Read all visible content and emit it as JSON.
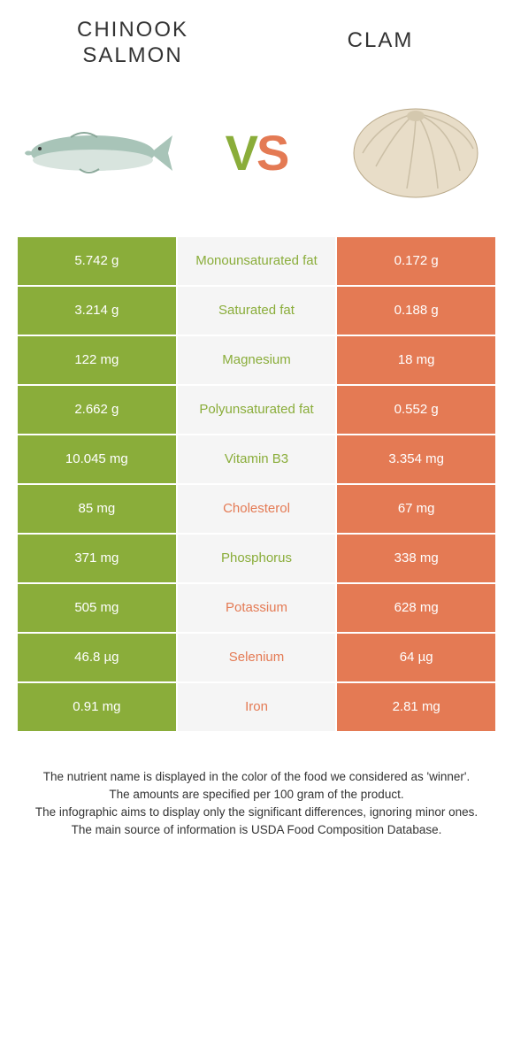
{
  "header": {
    "left_title": "Chinook salmon",
    "right_title": "Clam",
    "vs_v": "V",
    "vs_s": "S"
  },
  "colors": {
    "left_winner": "#8aad3a",
    "right_winner": "#e47a54",
    "mid_bg": "#f5f5f5",
    "salmon_body": "#a8c4b8",
    "salmon_belly": "#d8e4de",
    "clam_shell": "#e8ddc8",
    "clam_edge": "#b8a888"
  },
  "rows": [
    {
      "label": "Monounsaturated fat",
      "left": "5.742 g",
      "right": "0.172 g",
      "winner": "left"
    },
    {
      "label": "Saturated fat",
      "left": "3.214 g",
      "right": "0.188 g",
      "winner": "left"
    },
    {
      "label": "Magnesium",
      "left": "122 mg",
      "right": "18 mg",
      "winner": "left"
    },
    {
      "label": "Polyunsaturated fat",
      "left": "2.662 g",
      "right": "0.552 g",
      "winner": "left"
    },
    {
      "label": "Vitamin B3",
      "left": "10.045 mg",
      "right": "3.354 mg",
      "winner": "left"
    },
    {
      "label": "Cholesterol",
      "left": "85 mg",
      "right": "67 mg",
      "winner": "right"
    },
    {
      "label": "Phosphorus",
      "left": "371 mg",
      "right": "338 mg",
      "winner": "left"
    },
    {
      "label": "Potassium",
      "left": "505 mg",
      "right": "628 mg",
      "winner": "right"
    },
    {
      "label": "Selenium",
      "left": "46.8 µg",
      "right": "64 µg",
      "winner": "right"
    },
    {
      "label": "Iron",
      "left": "0.91 mg",
      "right": "2.81 mg",
      "winner": "right"
    }
  ],
  "footer": {
    "line1": "The nutrient name is displayed in the color of the food we considered as 'winner'.",
    "line2": "The amounts are specified per 100 gram of the product.",
    "line3": "The infographic aims to display only the significant differences, ignoring minor ones.",
    "line4": "The main source of information is USDA Food Composition Database."
  }
}
